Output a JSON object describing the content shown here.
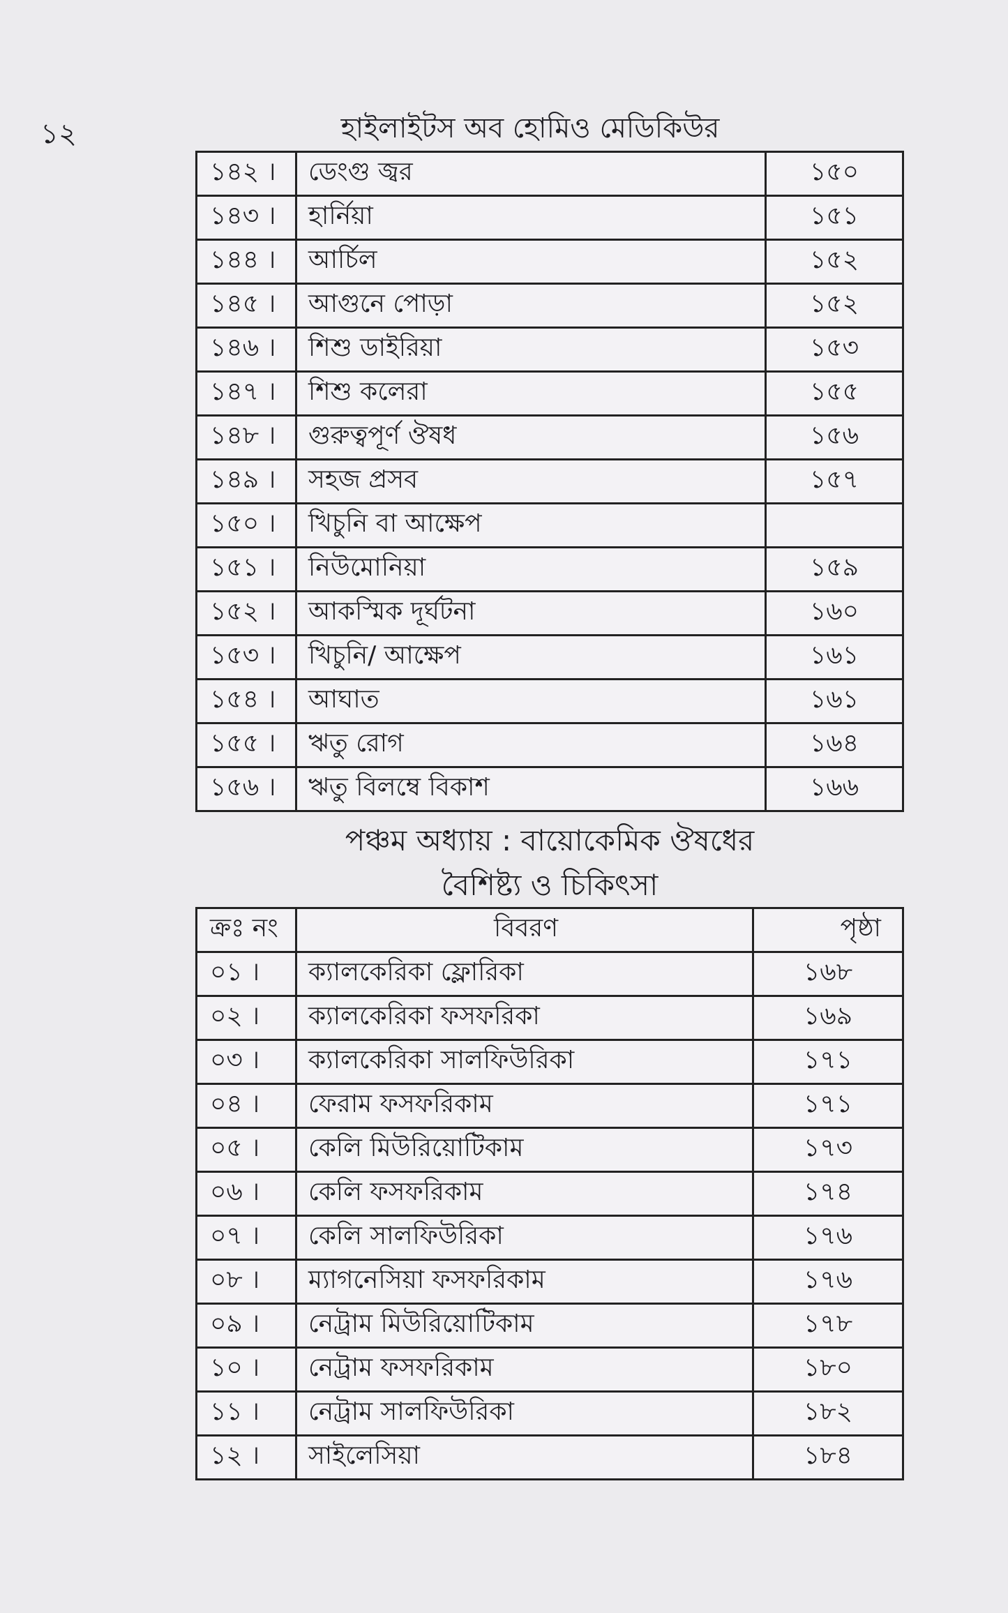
{
  "header": {
    "page_number": "১২",
    "book_title": "হাইলাইটস অব হোমিও মেডিকিউর"
  },
  "table1": {
    "rows": [
      {
        "num": "১৪২ ।",
        "desc": "ডেংগু জ্বর",
        "page": "১৫০"
      },
      {
        "num": "১৪৩ ।",
        "desc": "হার্নিয়া",
        "page": "১৫১"
      },
      {
        "num": "১৪৪ ।",
        "desc": "আর্চিল",
        "page": "১৫২"
      },
      {
        "num": "১৪৫ ।",
        "desc": "আগুনে পোড়া",
        "page": "১৫২"
      },
      {
        "num": "১৪৬ ।",
        "desc": "শিশু ডাইরিয়া",
        "page": "১৫৩"
      },
      {
        "num": "১৪৭ ।",
        "desc": "শিশু কলেরা",
        "page": "১৫৫"
      },
      {
        "num": "১৪৮ ।",
        "desc": "গুরুত্বপূর্ণ ঔষধ",
        "page": "১৫৬"
      },
      {
        "num": "১৪৯ ।",
        "desc": "সহজ প্রসব",
        "page": "১৫৭"
      },
      {
        "num": "১৫০ ।",
        "desc": "খিচুনি বা আক্ষেপ",
        "page": ""
      },
      {
        "num": "১৫১ ।",
        "desc": "নিউমোনিয়া",
        "page": "১৫৯"
      },
      {
        "num": "১৫২ ।",
        "desc": "আকস্মিক দূর্ঘটনা",
        "page": "১৬০"
      },
      {
        "num": "১৫৩ ।",
        "desc": "খিচুনি/ আক্ষেপ",
        "page": "১৬১"
      },
      {
        "num": "১৫৪ ।",
        "desc": "আঘাত",
        "page": "১৬১"
      },
      {
        "num": "১৫৫ ।",
        "desc": "ঋতু রোগ",
        "page": "১৬৪"
      },
      {
        "num": "১৫৬ ।",
        "desc": "ঋতু বিলম্বে বিকাশ",
        "page": "১৬৬"
      }
    ]
  },
  "chapter": {
    "line1": "পঞ্চম অধ্যায় : বায়োকেমিক ঔষধের",
    "line2": "বৈশিষ্ট্য ও চিকিৎসা"
  },
  "table2": {
    "headers": {
      "num": "ক্রঃ নং",
      "desc": "বিবরণ",
      "page": "পৃষ্ঠা"
    },
    "rows": [
      {
        "num": "০১ ।",
        "desc": "ক্যালকেরিকা ফ্লোরিকা",
        "page": "১৬৮"
      },
      {
        "num": "০২ ।",
        "desc": "ক্যালকেরিকা ফসফরিকা",
        "page": "১৬৯"
      },
      {
        "num": "০৩ ।",
        "desc": "ক্যালকেরিকা সালফিউরিকা",
        "page": "১৭১"
      },
      {
        "num": "০৪ ।",
        "desc": "ফেরাম ফসফরিকাম",
        "page": "১৭১"
      },
      {
        "num": "০৫ ।",
        "desc": "কেলি মিউরিয়োটিকাম",
        "page": "১৭৩"
      },
      {
        "num": "০৬ ।",
        "desc": "কেলি ফসফরিকাম",
        "page": "১৭৪"
      },
      {
        "num": "০৭ ।",
        "desc": "কেলি সালফিউরিকা",
        "page": "১৭৬"
      },
      {
        "num": "০৮ ।",
        "desc": "ম্যাগনেসিয়া ফসফরিকাম",
        "page": "১৭৬"
      },
      {
        "num": "০৯ ।",
        "desc": "নেট্রাম মিউরিয়োটিকাম",
        "page": "১৭৮"
      },
      {
        "num": "১০ ।",
        "desc": "নেট্রাম ফসফরিকাম",
        "page": "১৮০"
      },
      {
        "num": "১১ ।",
        "desc": "নেট্রাম সালফিউরিকা",
        "page": "১৮২"
      },
      {
        "num": "১২ ।",
        "desc": "সাইলেসিয়া",
        "page": "১৮৪"
      }
    ]
  }
}
